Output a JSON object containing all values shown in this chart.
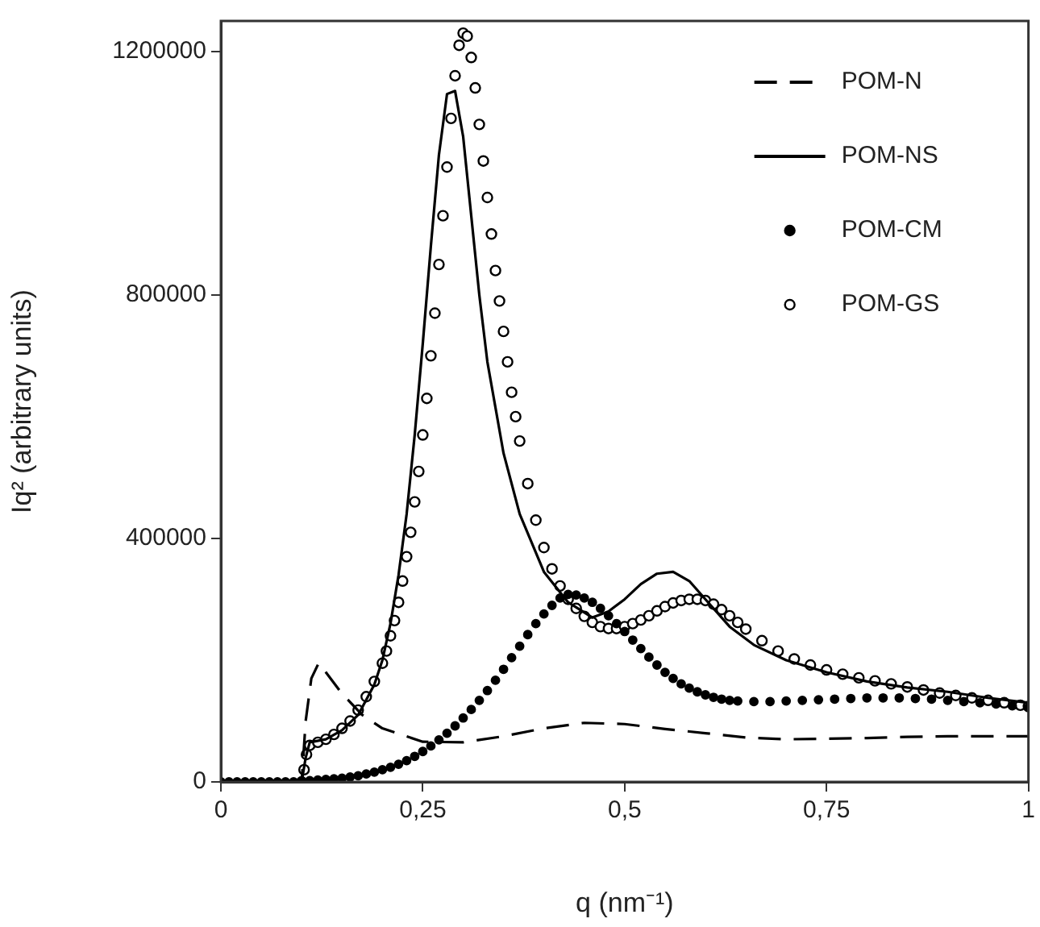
{
  "chart_data": {
    "type": "line",
    "xlabel": "q (nm⁻¹)",
    "ylabel": "Iq² (arbitrary units)",
    "xlim": [
      0,
      1
    ],
    "xticks": [
      0,
      {
        "value": 0.25,
        "label": "0,25"
      },
      {
        "value": 0.5,
        "label": "0,5"
      },
      {
        "value": 0.75,
        "label": "0,75"
      },
      1
    ],
    "ylim": [
      0,
      1250000
    ],
    "yticks": [
      0,
      400000,
      800000,
      1200000
    ],
    "grid": false,
    "legend": "top right",
    "series": [
      {
        "name": "POM-N",
        "type": "line",
        "line_style": "dashed",
        "marker": "none",
        "color": "#000000",
        "x": [
          0,
          0.1,
          0.105,
          0.112,
          0.121,
          0.13,
          0.15,
          0.175,
          0.2,
          0.25,
          0.3,
          0.35,
          0.4,
          0.45,
          0.5,
          0.55,
          0.6,
          0.65,
          0.7,
          0.75,
          0.8,
          0.85,
          0.9,
          0.95,
          1
        ],
        "values": [
          0,
          0,
          100000,
          170000,
          195000,
          180000,
          145000,
          110000,
          88000,
          66000,
          65000,
          75000,
          88000,
          97000,
          95000,
          87000,
          80000,
          73000,
          70000,
          71000,
          72000,
          74000,
          75000,
          75000,
          75000
        ]
      },
      {
        "name": "POM-NS",
        "type": "line",
        "line_style": "solid",
        "marker": "none",
        "color": "#000000",
        "x": [
          0,
          0.1,
          0.105,
          0.11,
          0.13,
          0.15,
          0.17,
          0.19,
          0.2,
          0.21,
          0.22,
          0.23,
          0.24,
          0.25,
          0.26,
          0.27,
          0.28,
          0.29,
          0.3,
          0.31,
          0.32,
          0.33,
          0.35,
          0.37,
          0.4,
          0.43,
          0.46,
          0.48,
          0.5,
          0.52,
          0.54,
          0.56,
          0.58,
          0.6,
          0.63,
          0.66,
          0.7,
          0.75,
          0.8,
          0.85,
          0.9,
          0.95,
          1
        ],
        "values": [
          0,
          0,
          40000,
          65000,
          70000,
          85000,
          110000,
          160000,
          200000,
          260000,
          340000,
          440000,
          570000,
          720000,
          880000,
          1030000,
          1130000,
          1135000,
          1060000,
          930000,
          800000,
          690000,
          540000,
          440000,
          345000,
          295000,
          270000,
          280000,
          300000,
          325000,
          342000,
          345000,
          330000,
          300000,
          255000,
          225000,
          200000,
          180000,
          165000,
          155000,
          148000,
          138000,
          130000
        ]
      },
      {
        "name": "POM-CM",
        "type": "scatter",
        "marker": "circle",
        "color": "#000000",
        "x": [
          0,
          0.01,
          0.02,
          0.03,
          0.04,
          0.05,
          0.06,
          0.07,
          0.08,
          0.09,
          0.1,
          0.11,
          0.12,
          0.13,
          0.14,
          0.15,
          0.16,
          0.17,
          0.18,
          0.19,
          0.2,
          0.21,
          0.22,
          0.23,
          0.24,
          0.25,
          0.26,
          0.27,
          0.28,
          0.29,
          0.3,
          0.31,
          0.32,
          0.33,
          0.34,
          0.35,
          0.36,
          0.37,
          0.38,
          0.39,
          0.4,
          0.41,
          0.42,
          0.43,
          0.44,
          0.45,
          0.46,
          0.47,
          0.48,
          0.49,
          0.5,
          0.51,
          0.52,
          0.53,
          0.54,
          0.55,
          0.56,
          0.57,
          0.58,
          0.59,
          0.6,
          0.61,
          0.62,
          0.63,
          0.64,
          0.66,
          0.68,
          0.7,
          0.72,
          0.74,
          0.76,
          0.78,
          0.8,
          0.82,
          0.84,
          0.86,
          0.88,
          0.9,
          0.92,
          0.94,
          0.96,
          0.98,
          1
        ],
        "values": [
          0,
          0,
          0,
          0,
          0,
          0,
          0,
          0,
          0,
          0,
          0,
          2000,
          3000,
          4000,
          5000,
          6000,
          8000,
          10000,
          13000,
          16000,
          20000,
          24000,
          29000,
          35000,
          42000,
          50000,
          59000,
          69000,
          80000,
          92000,
          105000,
          119000,
          134000,
          150000,
          167000,
          185000,
          204000,
          223000,
          242000,
          260000,
          276000,
          290000,
          302000,
          308000,
          307000,
          302000,
          295000,
          285000,
          273000,
          260000,
          247000,
          233000,
          219000,
          205000,
          192000,
          180000,
          170000,
          161000,
          154000,
          148000,
          143000,
          139000,
          136000,
          134000,
          133000,
          132000,
          132000,
          133000,
          134000,
          135000,
          136000,
          137000,
          138000,
          138000,
          138000,
          137000,
          136000,
          134000,
          132000,
          130000,
          128000,
          125000,
          122000
        ]
      },
      {
        "name": "POM-GS",
        "type": "scatter",
        "marker": "circle",
        "color": "#000000",
        "x": [
          0.1,
          0.103,
          0.106,
          0.11,
          0.12,
          0.13,
          0.14,
          0.15,
          0.16,
          0.17,
          0.18,
          0.19,
          0.2,
          0.205,
          0.21,
          0.215,
          0.22,
          0.225,
          0.23,
          0.235,
          0.24,
          0.245,
          0.25,
          0.255,
          0.26,
          0.265,
          0.27,
          0.275,
          0.28,
          0.285,
          0.29,
          0.295,
          0.3,
          0.305,
          0.31,
          0.315,
          0.32,
          0.325,
          0.33,
          0.335,
          0.34,
          0.345,
          0.35,
          0.355,
          0.36,
          0.365,
          0.37,
          0.38,
          0.39,
          0.4,
          0.41,
          0.42,
          0.43,
          0.44,
          0.45,
          0.46,
          0.47,
          0.48,
          0.49,
          0.5,
          0.51,
          0.52,
          0.53,
          0.54,
          0.55,
          0.56,
          0.57,
          0.58,
          0.59,
          0.6,
          0.61,
          0.62,
          0.63,
          0.64,
          0.65,
          0.67,
          0.69,
          0.71,
          0.73,
          0.75,
          0.77,
          0.79,
          0.81,
          0.83,
          0.85,
          0.87,
          0.89,
          0.91,
          0.93,
          0.95,
          0.97,
          0.99,
          1
        ],
        "values": [
          0,
          20000,
          45000,
          60000,
          65000,
          70000,
          78000,
          88000,
          100000,
          118000,
          140000,
          165000,
          195000,
          215000,
          240000,
          265000,
          295000,
          330000,
          370000,
          410000,
          460000,
          510000,
          570000,
          630000,
          700000,
          770000,
          850000,
          930000,
          1010000,
          1090000,
          1160000,
          1210000,
          1230000,
          1225000,
          1190000,
          1140000,
          1080000,
          1020000,
          960000,
          900000,
          840000,
          790000,
          740000,
          690000,
          640000,
          600000,
          560000,
          490000,
          430000,
          385000,
          350000,
          322000,
          300000,
          285000,
          272000,
          262000,
          255000,
          252000,
          252000,
          255000,
          260000,
          266000,
          273000,
          281000,
          288000,
          294000,
          298000,
          300000,
          300000,
          298000,
          292000,
          283000,
          273000,
          262000,
          251000,
          232000,
          215000,
          202000,
          192000,
          184000,
          177000,
          171000,
          166000,
          161000,
          156000,
          151000,
          146000,
          142000,
          138000,
          134000,
          130000,
          126000,
          124000
        ]
      }
    ]
  }
}
